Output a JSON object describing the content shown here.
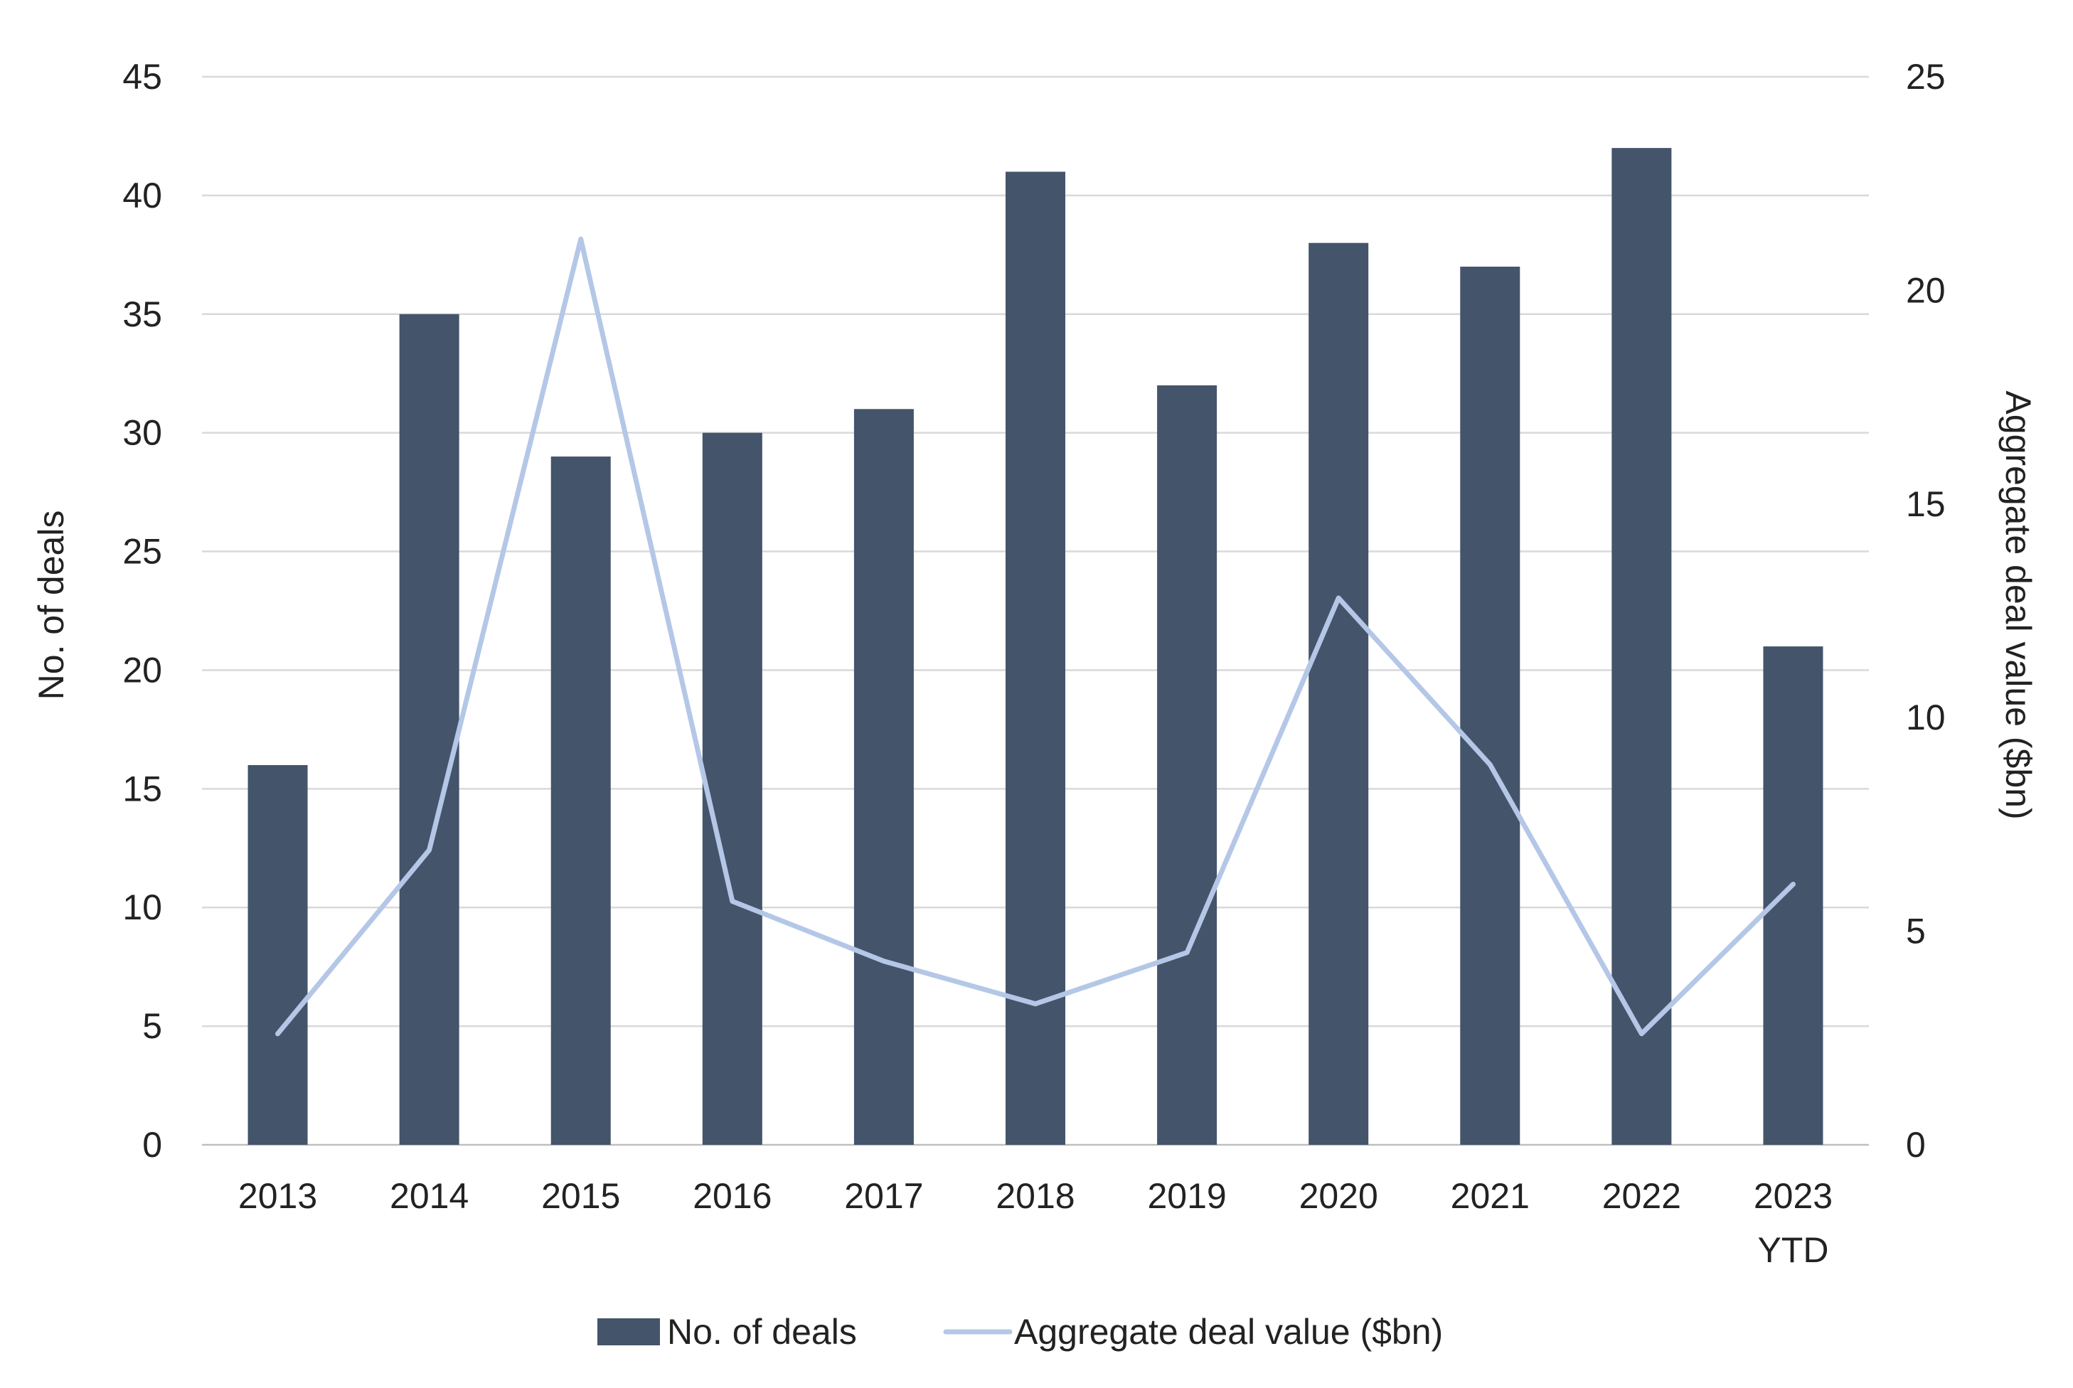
{
  "chart_data": {
    "type": "bar",
    "categories": [
      "2013",
      "2014",
      "2015",
      "2016",
      "2017",
      "2018",
      "2019",
      "2020",
      "2021",
      "2022",
      "2023 YTD"
    ],
    "category_lines": [
      [
        "2013"
      ],
      [
        "2014"
      ],
      [
        "2015"
      ],
      [
        "2016"
      ],
      [
        "2017"
      ],
      [
        "2018"
      ],
      [
        "2019"
      ],
      [
        "2020"
      ],
      [
        "2021"
      ],
      [
        "2022"
      ],
      [
        "2023",
        "YTD"
      ]
    ],
    "series": [
      {
        "name": "No. of deals",
        "type": "bar",
        "axis": "left",
        "color": "#44546A",
        "values": [
          16,
          35,
          29,
          30,
          31,
          41,
          32,
          38,
          37,
          42,
          21
        ]
      },
      {
        "name": "Aggregate deal value ($bn)",
        "type": "line",
        "axis": "right",
        "color": "#B4C7E7",
        "values": [
          2.6,
          6.9,
          21.2,
          5.7,
          4.3,
          3.3,
          4.5,
          12.8,
          8.9,
          2.6,
          6.1
        ]
      }
    ],
    "title": "",
    "xlabel": "",
    "ylabel": "No. of deals",
    "y2label": "Aggregate deal value ($bn)",
    "ylim": [
      0,
      45
    ],
    "yticks": [
      0,
      5,
      10,
      15,
      20,
      25,
      30,
      35,
      40,
      45
    ],
    "y2lim": [
      0,
      25
    ],
    "y2ticks": [
      0,
      5,
      10,
      15,
      20,
      25
    ],
    "grid": true,
    "legend_position": "bottom-center"
  }
}
